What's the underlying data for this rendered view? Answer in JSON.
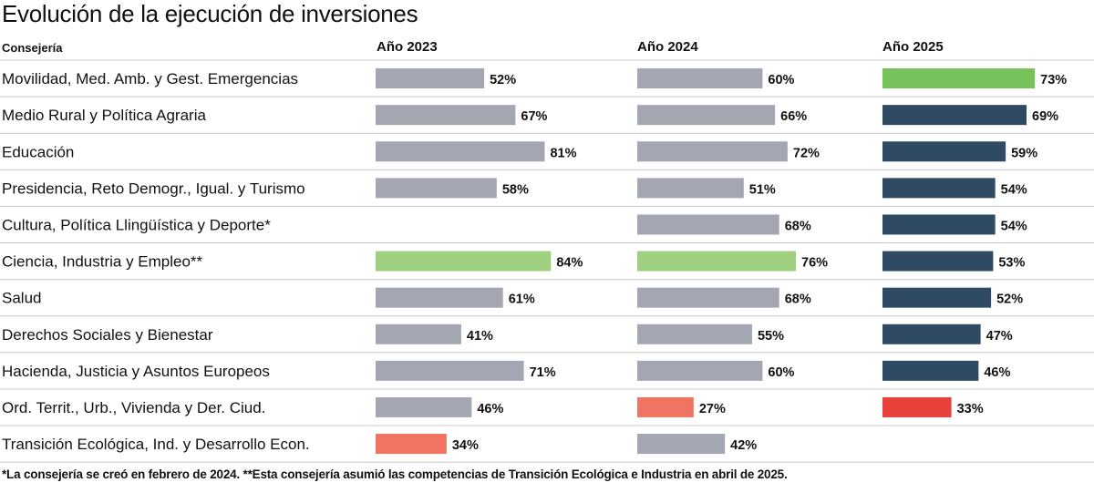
{
  "title": "Evolución de la ejecución de inversiones",
  "footnote": "*La consejería se creó en febrero de 2024. **Esta consejería asumió las competencias de Transición Ecológica e Industria en abril de 2025.",
  "chart_data": {
    "type": "bar",
    "row_header": "Consejería",
    "categories": [
      "Movilidad, Med. Amb. y Gest. Emergencias",
      "Medio Rural y Política Agraria",
      "Educación",
      "Presidencia, Reto Demogr., Igual. y Turismo",
      "Cultura, Política Llingüística y Deporte*",
      "Ciencia, Industria y Empleo**",
      "Salud",
      "Derechos Sociales y Bienestar",
      "Hacienda, Justicia y Asuntos Europeos",
      "Ord. Territ., Urb., Vivienda y Der. Ciud.",
      "Transición Ecológica, Ind. y Desarrollo Econ."
    ],
    "unit": "%",
    "series": [
      {
        "name": "Año 2023",
        "values": [
          52,
          67,
          81,
          58,
          null,
          84,
          61,
          41,
          71,
          46,
          34
        ],
        "colors": [
          "#a2a7b2",
          "#a2a7b2",
          "#a2a7b2",
          "#a2a7b2",
          null,
          "#9fd07f",
          "#a2a7b2",
          "#a2a7b2",
          "#a2a7b2",
          "#a2a7b2",
          "#ef7562"
        ]
      },
      {
        "name": "Año 2024",
        "values": [
          60,
          66,
          72,
          51,
          68,
          76,
          68,
          55,
          60,
          27,
          42
        ],
        "colors": [
          "#a2a7b2",
          "#a2a7b2",
          "#a2a7b2",
          "#a2a7b2",
          "#a2a7b2",
          "#9fd07f",
          "#a2a7b2",
          "#a2a7b2",
          "#a2a7b2",
          "#ef7562",
          "#a2a7b2"
        ]
      },
      {
        "name": "Año 2025",
        "values": [
          73,
          69,
          59,
          54,
          54,
          53,
          52,
          47,
          46,
          33,
          null
        ],
        "colors": [
          "#77c25a",
          "#2f4b63",
          "#2f4b63",
          "#2f4b63",
          "#2f4b63",
          "#2f4b63",
          "#2f4b63",
          "#2f4b63",
          "#2f4b63",
          "#e8403a",
          null
        ]
      }
    ]
  }
}
